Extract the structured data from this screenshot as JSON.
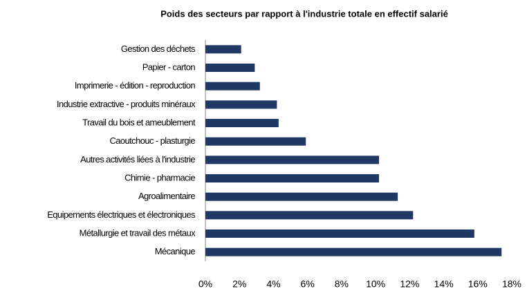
{
  "chart_data": {
    "type": "barh",
    "title": "Poids des secteurs par rapport  à l'industrie totale en effectif salarié",
    "categories": [
      "Gestion des déchets",
      "Papier - carton",
      "Imprimerie - édition - reproduction",
      "Industrie extractive - produits minéraux",
      "Travail du bois et ameublement",
      "Caoutchouc - plasturgie",
      "Autres activités liées à l'industrie",
      "Chimie - pharmacie",
      "Agroalimentaire",
      "Equipements électriques et électroniques",
      "Métallurgie et travail des métaux",
      "Mécanique"
    ],
    "values": [
      2.1,
      2.9,
      3.2,
      4.2,
      4.3,
      5.9,
      10.2,
      10.2,
      11.3,
      12.2,
      15.8,
      17.4
    ],
    "color": "#1f3864",
    "xlim": [
      0,
      18
    ],
    "xticks": [
      {
        "value": 0,
        "label": "0%"
      },
      {
        "value": 2,
        "label": "2%"
      },
      {
        "value": 4,
        "label": "4%"
      },
      {
        "value": 6,
        "label": "6%"
      },
      {
        "value": 8,
        "label": "8%"
      },
      {
        "value": 10,
        "label": "10%"
      },
      {
        "value": 12,
        "label": "12%"
      },
      {
        "value": 14,
        "label": "14%"
      },
      {
        "value": 16,
        "label": "16%"
      },
      {
        "value": 18,
        "label": "18%"
      }
    ],
    "grid": false
  }
}
